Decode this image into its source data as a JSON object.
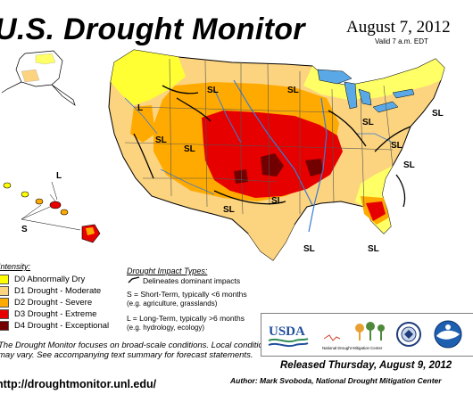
{
  "header": {
    "title": "U.S. Drought Monitor",
    "date": "August 7, 2012",
    "valid": "Valid 7 a.m. EDT"
  },
  "map": {
    "region_labels": [
      "SL",
      "SL",
      "L",
      "SL",
      "SL",
      "SL",
      "SL",
      "SL",
      "SL",
      "SL",
      "SL",
      "SL",
      "SL",
      "L",
      "S"
    ]
  },
  "legend": {
    "intensity_title": "Intensity:",
    "categories": [
      {
        "label": "D0 Abnormally Dry",
        "color": "#ffff00"
      },
      {
        "label": "D1 Drought - Moderate",
        "color": "#fcd37f"
      },
      {
        "label": "D2 Drought - Severe",
        "color": "#ffaa00"
      },
      {
        "label": "D3 Drought - Extreme",
        "color": "#e60000"
      },
      {
        "label": "D4 Drought - Exceptional",
        "color": "#730000"
      }
    ]
  },
  "impact": {
    "title": "Drought Impact Types:",
    "delineates": "Delineates dominant impacts",
    "short_term": "S = Short-Term, typically <6 months",
    "short_term_example": "(e.g. agriculture, grasslands)",
    "long_term": "L = Long-Term, typically >6 months",
    "long_term_example": "(e.g. hydrology, ecology)"
  },
  "notes": {
    "text": "The Drought Monitor focuses on broad-scale conditions. Local conditions may vary. See accompanying text summary for forecast statements."
  },
  "logos": {
    "usda": "USDA",
    "ndmc": "National Drought Mitigation Center"
  },
  "footer": {
    "website": "http://droughtmonitor.unl.edu/",
    "released": "Released Thursday, August 9, 2012",
    "author": "Author: Mark Svoboda, National Drought Mitigation Center"
  },
  "colors": {
    "water": "#5aa9e6",
    "none": "#ffffff",
    "boundary": "#000000"
  }
}
